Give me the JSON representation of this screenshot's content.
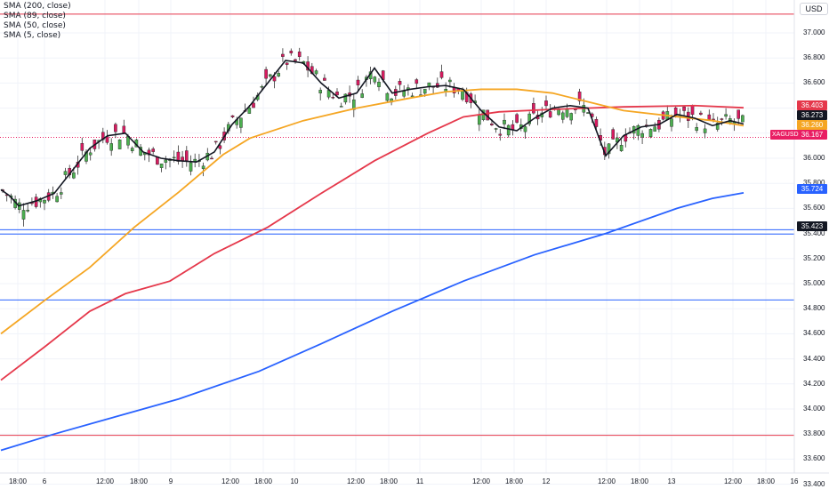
{
  "legend": [
    "SMA (200, close)",
    "SMA (89, close)",
    "SMA (50, close)",
    "SMA (5, close)"
  ],
  "currency": "USD",
  "symbol": "XAGUSD",
  "chart_data": {
    "type": "candlestick",
    "ylim": [
      33.4,
      37.2
    ],
    "y_ticks": [
      37.0,
      36.8,
      36.6,
      36.4,
      36.2,
      36.0,
      35.8,
      35.6,
      35.4,
      35.2,
      35.0,
      34.8,
      34.6,
      34.4,
      34.2,
      34.0,
      33.8,
      33.6,
      33.4
    ],
    "y_tick_labels": [
      "37.000",
      "36.800",
      "36.600",
      "36.400",
      "36.200",
      "36.000",
      "35.800",
      "35.600",
      "35.400",
      "35.200",
      "35.000",
      "34.800",
      "34.600",
      "34.400",
      "34.200",
      "34.000",
      "33.800",
      "33.600",
      "33.400"
    ],
    "x_tick_labels": [
      "18:00",
      "6",
      "12:00",
      "18:00",
      "9",
      "12:00",
      "18:00",
      "10",
      "12:00",
      "18:00",
      "11",
      "12:00",
      "18:00",
      "12",
      "12:00",
      "18:00",
      "13",
      "12:00",
      "18:00",
      "16"
    ],
    "price_badges": [
      {
        "value": "36.403",
        "color": "#e5384b"
      },
      {
        "value": "36.273",
        "color": "#131722"
      },
      {
        "value": "36.260",
        "color": "#f5a623"
      },
      {
        "value": "36.167",
        "color": "#e91e63"
      },
      {
        "value": "35.724",
        "color": "#2962ff"
      },
      {
        "value": "35.423",
        "color": "#131722"
      }
    ],
    "horizontal_lines": [
      {
        "y": 37.15,
        "color": "#e5384b"
      },
      {
        "y": 35.43,
        "color": "#2962ff"
      },
      {
        "y": 35.395,
        "color": "#2962ff"
      },
      {
        "y": 34.87,
        "color": "#2962ff"
      },
      {
        "y": 33.79,
        "color": "#e5384b"
      }
    ],
    "last_price_line": 36.167,
    "sma_200": [
      [
        0,
        33.67
      ],
      [
        60,
        33.8
      ],
      [
        120,
        33.92
      ],
      [
        200,
        34.08
      ],
      [
        290,
        34.3
      ],
      [
        360,
        34.52
      ],
      [
        440,
        34.78
      ],
      [
        520,
        35.02
      ],
      [
        600,
        35.23
      ],
      [
        680,
        35.4
      ],
      [
        760,
        35.6
      ],
      [
        800,
        35.68
      ],
      [
        835,
        35.724
      ]
    ],
    "sma_89": [
      [
        0,
        34.23
      ],
      [
        50,
        34.5
      ],
      [
        100,
        34.78
      ],
      [
        140,
        34.92
      ],
      [
        190,
        35.02
      ],
      [
        240,
        35.24
      ],
      [
        300,
        35.45
      ],
      [
        360,
        35.72
      ],
      [
        420,
        35.98
      ],
      [
        480,
        36.2
      ],
      [
        520,
        36.33
      ],
      [
        560,
        36.37
      ],
      [
        620,
        36.39
      ],
      [
        700,
        36.41
      ],
      [
        780,
        36.42
      ],
      [
        835,
        36.403
      ]
    ],
    "sma_50": [
      [
        0,
        34.6
      ],
      [
        50,
        34.87
      ],
      [
        100,
        35.13
      ],
      [
        150,
        35.45
      ],
      [
        200,
        35.73
      ],
      [
        250,
        36.03
      ],
      [
        280,
        36.16
      ],
      [
        340,
        36.3
      ],
      [
        400,
        36.4
      ],
      [
        460,
        36.48
      ],
      [
        500,
        36.53
      ],
      [
        540,
        36.55
      ],
      [
        580,
        36.55
      ],
      [
        620,
        36.52
      ],
      [
        660,
        36.45
      ],
      [
        700,
        36.38
      ],
      [
        750,
        36.34
      ],
      [
        800,
        36.3
      ],
      [
        835,
        36.26
      ]
    ],
    "sma_5": [
      [
        0,
        35.75
      ],
      [
        10,
        35.7
      ],
      [
        20,
        35.62
      ],
      [
        40,
        35.66
      ],
      [
        60,
        35.72
      ],
      [
        80,
        35.9
      ],
      [
        100,
        36.08
      ],
      [
        120,
        36.18
      ],
      [
        140,
        36.2
      ],
      [
        160,
        36.05
      ],
      [
        180,
        36.0
      ],
      [
        200,
        35.98
      ],
      [
        220,
        35.97
      ],
      [
        240,
        36.05
      ],
      [
        260,
        36.27
      ],
      [
        280,
        36.42
      ],
      [
        300,
        36.6
      ],
      [
        320,
        36.78
      ],
      [
        340,
        36.76
      ],
      [
        360,
        36.6
      ],
      [
        380,
        36.48
      ],
      [
        400,
        36.52
      ],
      [
        420,
        36.72
      ],
      [
        440,
        36.52
      ],
      [
        460,
        36.55
      ],
      [
        480,
        36.57
      ],
      [
        500,
        36.58
      ],
      [
        520,
        36.55
      ],
      [
        540,
        36.38
      ],
      [
        560,
        36.25
      ],
      [
        580,
        36.22
      ],
      [
        600,
        36.32
      ],
      [
        620,
        36.4
      ],
      [
        640,
        36.42
      ],
      [
        660,
        36.4
      ],
      [
        680,
        36.02
      ],
      [
        700,
        36.18
      ],
      [
        720,
        36.25
      ],
      [
        740,
        36.27
      ],
      [
        760,
        36.35
      ],
      [
        780,
        36.32
      ],
      [
        800,
        36.26
      ],
      [
        820,
        36.3
      ],
      [
        835,
        36.273
      ]
    ]
  }
}
